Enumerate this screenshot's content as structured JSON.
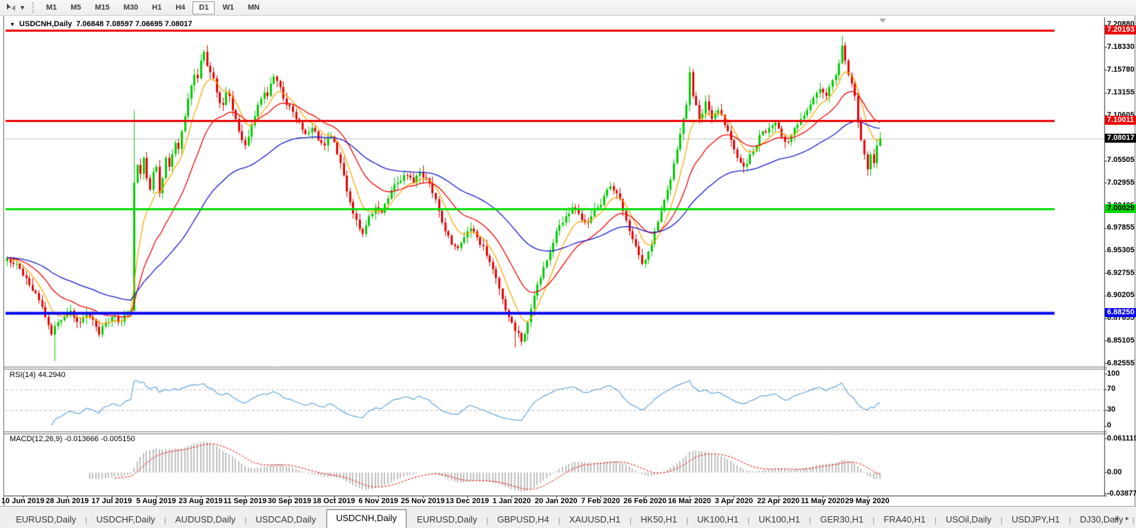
{
  "toolbar": {
    "timeframes": [
      {
        "label": "M1",
        "active": false
      },
      {
        "label": "M5",
        "active": false
      },
      {
        "label": "M15",
        "active": false
      },
      {
        "label": "M30",
        "active": false
      },
      {
        "label": "H1",
        "active": false
      },
      {
        "label": "H4",
        "active": false
      },
      {
        "label": "D1",
        "active": true
      },
      {
        "label": "W1",
        "active": false
      },
      {
        "label": "MN",
        "active": false
      }
    ]
  },
  "chart": {
    "title_symbol": "USDCNH,Daily",
    "title_ohlc": "7.06848 7.08597 7.06695 7.08017"
  },
  "rsi_panel": {
    "title": "RSI(14) 44.2940"
  },
  "macd_panel": {
    "title": "MACD(12,26,9) -0.013666 -0.005150"
  },
  "tabs": {
    "items": [
      {
        "label": "EURUSD,Daily",
        "active": false
      },
      {
        "label": "USDCHF,Daily",
        "active": false
      },
      {
        "label": "AUDUSD,Daily",
        "active": false
      },
      {
        "label": "USDCAD,Daily",
        "active": false
      },
      {
        "label": "USDCNH,Daily",
        "active": true
      },
      {
        "label": "EURUSD,Daily",
        "active": false
      },
      {
        "label": "GBPUSD,H4",
        "active": false
      },
      {
        "label": "XAUUSD,H1",
        "active": false
      },
      {
        "label": "HK50,H1",
        "active": false
      },
      {
        "label": "UK100,H1",
        "active": false
      },
      {
        "label": "UK100,H1",
        "active": false
      },
      {
        "label": "GER30,H1",
        "active": false
      },
      {
        "label": "FRA40,H1",
        "active": false
      },
      {
        "label": "USOil,Daily",
        "active": false
      },
      {
        "label": "USDJPY,H1",
        "active": false
      },
      {
        "label": "DJ30,Daily",
        "active": false
      }
    ],
    "scroll_left": "◂",
    "scroll_right": "▸"
  },
  "chart_data": {
    "type": "candlestick",
    "symbol": "USDCNH",
    "timeframe": "Daily",
    "open": "7.06848",
    "high": "7.08597",
    "low": "7.06695",
    "close": "7.08017",
    "bars": 276,
    "up_color": "#00CC00",
    "down_color": "#EA0000",
    "close_path_anchors": [
      [
        0,
        6.945
      ],
      [
        3,
        6.938
      ],
      [
        6,
        6.922
      ],
      [
        9,
        6.905
      ],
      [
        12,
        6.878
      ],
      [
        14,
        6.858
      ],
      [
        16,
        6.872
      ],
      [
        18,
        6.878
      ],
      [
        20,
        6.885
      ],
      [
        23,
        6.872
      ],
      [
        25,
        6.882
      ],
      [
        27,
        6.875
      ],
      [
        29,
        6.858
      ],
      [
        31,
        6.872
      ],
      [
        33,
        6.878
      ],
      [
        35,
        6.872
      ],
      [
        37,
        6.88
      ],
      [
        39,
        6.885
      ],
      [
        40,
        7.03
      ],
      [
        41,
        7.05
      ],
      [
        42,
        7.04
      ],
      [
        43,
        7.058
      ],
      [
        44,
        7.035
      ],
      [
        45,
        7.022
      ],
      [
        46,
        7.042
      ],
      [
        47,
        7.048
      ],
      [
        48,
        7.018
      ],
      [
        49,
        7.035
      ],
      [
        50,
        7.058
      ],
      [
        51,
        7.048
      ],
      [
        52,
        7.062
      ],
      [
        53,
        7.075
      ],
      [
        54,
        7.068
      ],
      [
        55,
        7.088
      ],
      [
        56,
        7.105
      ],
      [
        57,
        7.125
      ],
      [
        58,
        7.14
      ],
      [
        59,
        7.152
      ],
      [
        60,
        7.148
      ],
      [
        61,
        7.168
      ],
      [
        62,
        7.178
      ],
      [
        63,
        7.162
      ],
      [
        64,
        7.155
      ],
      [
        65,
        7.148
      ],
      [
        66,
        7.132
      ],
      [
        67,
        7.12
      ],
      [
        68,
        7.118
      ],
      [
        69,
        7.132
      ],
      [
        70,
        7.128
      ],
      [
        71,
        7.112
      ],
      [
        72,
        7.102
      ],
      [
        73,
        7.088
      ],
      [
        74,
        7.078
      ],
      [
        75,
        7.072
      ],
      [
        76,
        7.082
      ],
      [
        77,
        7.095
      ],
      [
        78,
        7.105
      ],
      [
        79,
        7.118
      ],
      [
        80,
        7.125
      ],
      [
        81,
        7.132
      ],
      [
        82,
        7.128
      ],
      [
        83,
        7.142
      ],
      [
        84,
        7.15
      ],
      [
        85,
        7.145
      ],
      [
        86,
        7.138
      ],
      [
        87,
        7.125
      ],
      [
        88,
        7.118
      ],
      [
        90,
        7.11
      ],
      [
        92,
        7.098
      ],
      [
        94,
        7.085
      ],
      [
        96,
        7.092
      ],
      [
        98,
        7.078
      ],
      [
        100,
        7.072
      ],
      [
        102,
        7.082
      ],
      [
        104,
        7.062
      ],
      [
        106,
        7.038
      ],
      [
        108,
        7.008
      ],
      [
        110,
        6.988
      ],
      [
        112,
        6.972
      ],
      [
        114,
        6.992
      ],
      [
        116,
        7.002
      ],
      [
        118,
        6.996
      ],
      [
        120,
        7.012
      ],
      [
        122,
        7.028
      ],
      [
        124,
        7.032
      ],
      [
        126,
        7.038
      ],
      [
        128,
        7.03
      ],
      [
        130,
        7.042
      ],
      [
        132,
        7.035
      ],
      [
        134,
        7.018
      ],
      [
        136,
        6.998
      ],
      [
        138,
        6.975
      ],
      [
        140,
        6.96
      ],
      [
        142,
        6.956
      ],
      [
        144,
        6.968
      ],
      [
        146,
        6.978
      ],
      [
        148,
        6.968
      ],
      [
        150,
        6.958
      ],
      [
        152,
        6.94
      ],
      [
        154,
        6.922
      ],
      [
        156,
        6.898
      ],
      [
        158,
        6.878
      ],
      [
        160,
        6.862
      ],
      [
        162,
        6.85
      ],
      [
        164,
        6.872
      ],
      [
        166,
        6.902
      ],
      [
        168,
        6.922
      ],
      [
        170,
        6.942
      ],
      [
        172,
        6.962
      ],
      [
        174,
        6.982
      ],
      [
        176,
        6.992
      ],
      [
        178,
        7.002
      ],
      [
        180,
        6.995
      ],
      [
        182,
        6.985
      ],
      [
        184,
        6.992
      ],
      [
        186,
        7.002
      ],
      [
        188,
        7.015
      ],
      [
        190,
        7.026
      ],
      [
        192,
        7.018
      ],
      [
        194,
        6.998
      ],
      [
        196,
        6.975
      ],
      [
        198,
        6.958
      ],
      [
        200,
        6.938
      ],
      [
        202,
        6.952
      ],
      [
        204,
        6.975
      ],
      [
        206,
        6.998
      ],
      [
        208,
        7.022
      ],
      [
        210,
        7.052
      ],
      [
        212,
        7.085
      ],
      [
        214,
        7.118
      ],
      [
        215,
        7.155
      ],
      [
        216,
        7.128
      ],
      [
        218,
        7.102
      ],
      [
        220,
        7.122
      ],
      [
        222,
        7.102
      ],
      [
        224,
        7.112
      ],
      [
        226,
        7.095
      ],
      [
        228,
        7.078
      ],
      [
        230,
        7.058
      ],
      [
        232,
        7.048
      ],
      [
        234,
        7.062
      ],
      [
        236,
        7.072
      ],
      [
        238,
        7.088
      ],
      [
        240,
        7.092
      ],
      [
        242,
        7.098
      ],
      [
        244,
        7.082
      ],
      [
        246,
        7.076
      ],
      [
        248,
        7.092
      ],
      [
        250,
        7.102
      ],
      [
        252,
        7.112
      ],
      [
        254,
        7.126
      ],
      [
        256,
        7.136
      ],
      [
        258,
        7.128
      ],
      [
        260,
        7.146
      ],
      [
        262,
        7.165
      ],
      [
        263,
        7.185
      ],
      [
        264,
        7.168
      ],
      [
        265,
        7.152
      ],
      [
        266,
        7.142
      ],
      [
        267,
        7.128
      ],
      [
        268,
        7.098
      ],
      [
        269,
        7.078
      ],
      [
        270,
        7.062
      ],
      [
        271,
        7.045
      ],
      [
        272,
        7.062
      ],
      [
        273,
        7.052
      ],
      [
        274,
        7.072
      ],
      [
        275,
        7.08
      ]
    ],
    "wick_overrides": {
      "15": {
        "low": 6.828
      },
      "40": {
        "low": 6.884,
        "high": 7.112
      },
      "160": {
        "low": 6.8435
      },
      "263": {
        "high": 7.1965
      }
    },
    "moving_averages": [
      {
        "name": "ma-fast",
        "type": "ema",
        "period": 8,
        "color": "#FFA500"
      },
      {
        "name": "ma-mid",
        "type": "ema",
        "period": 21,
        "color": "#EE0000"
      },
      {
        "name": "ma-slow",
        "type": "ema",
        "period": 55,
        "color": "#1414CC"
      }
    ],
    "horizontal_levels": [
      {
        "price": 7.20193,
        "color": "#EE0000",
        "width": 3,
        "full_width": false
      },
      {
        "price": 7.10011,
        "color": "#EE0000",
        "width": 3,
        "full_width": false
      },
      {
        "price": 7.08017,
        "color": "#C0C0C0",
        "width": 1,
        "full_width": true
      },
      {
        "price": 7.00029,
        "color": "#00DC00",
        "width": 3,
        "full_width": false
      },
      {
        "price": 6.8825,
        "color": "#0000EE",
        "width": 4,
        "full_width": false
      }
    ],
    "price_axis_ticks": [
      "7.20880",
      "7.18330",
      "7.15780",
      "7.13155",
      "7.10605",
      "7.08055",
      "7.05505",
      "7.02955",
      "7.00405",
      "6.97855",
      "6.95305",
      "6.92755",
      "6.90205",
      "6.87655",
      "6.85105",
      "6.82555"
    ],
    "price_badges": [
      {
        "text": "7.20193",
        "price": 7.20193,
        "bg": "#EE0000",
        "fg": "#FFFFFF"
      },
      {
        "text": "7.10011",
        "price": 7.10011,
        "bg": "#EE0000",
        "fg": "#FFFFFF"
      },
      {
        "text": "7.08017",
        "price": 7.08017,
        "bg": "#000000",
        "fg": "#FFFFFF"
      },
      {
        "text": "7.00029",
        "price": 7.00029,
        "bg": "#00DC00",
        "fg": "#000000"
      },
      {
        "text": "6.88250",
        "price": 6.8825,
        "bg": "#0000EE",
        "fg": "#FFFFFF"
      }
    ],
    "date_ticks": [
      {
        "label": "10 Jun 2019",
        "bar": 5
      },
      {
        "label": "28 Jun 2019",
        "bar": 19
      },
      {
        "label": "17 Jul 2019",
        "bar": 33
      },
      {
        "label": "5 Aug 2019",
        "bar": 47
      },
      {
        "label": "23 Aug 2019",
        "bar": 61
      },
      {
        "label": "11 Sep 2019",
        "bar": 75
      },
      {
        "label": "30 Sep 2019",
        "bar": 89
      },
      {
        "label": "18 Oct 2019",
        "bar": 103
      },
      {
        "label": "6 Nov 2019",
        "bar": 117
      },
      {
        "label": "25 Nov 2019",
        "bar": 131
      },
      {
        "label": "13 Dec 2019",
        "bar": 145
      },
      {
        "label": "1 Jan 2020",
        "bar": 159
      },
      {
        "label": "20 Jan 2020",
        "bar": 173
      },
      {
        "label": "7 Feb 2020",
        "bar": 187
      },
      {
        "label": "26 Feb 2020",
        "bar": 201
      },
      {
        "label": "16 Mar 2020",
        "bar": 215
      },
      {
        "label": "3 Apr 2020",
        "bar": 229
      },
      {
        "label": "22 Apr 2020",
        "bar": 243
      },
      {
        "label": "11 May 2020",
        "bar": 257
      },
      {
        "label": "29 May 2020",
        "bar": 271
      }
    ],
    "rsi": {
      "period": 14,
      "current": 44.294,
      "color": "#5FA3DC",
      "axis_ticks": [
        "100",
        "70",
        "30",
        "0"
      ],
      "axis_values": [
        100,
        70,
        30,
        0
      ],
      "guide_levels": [
        70,
        30
      ]
    },
    "macd": {
      "fast": 12,
      "slow": 26,
      "signal_period": 9,
      "current_main": -0.013666,
      "current_signal": -0.00515,
      "hist_color": "#BFBFBF",
      "signal_color": "#EE0000",
      "axis_ticks": [
        "0.061119",
        "0.00",
        "-0.038777"
      ],
      "axis_values": [
        0.061119,
        0.0,
        -0.038777
      ]
    }
  }
}
